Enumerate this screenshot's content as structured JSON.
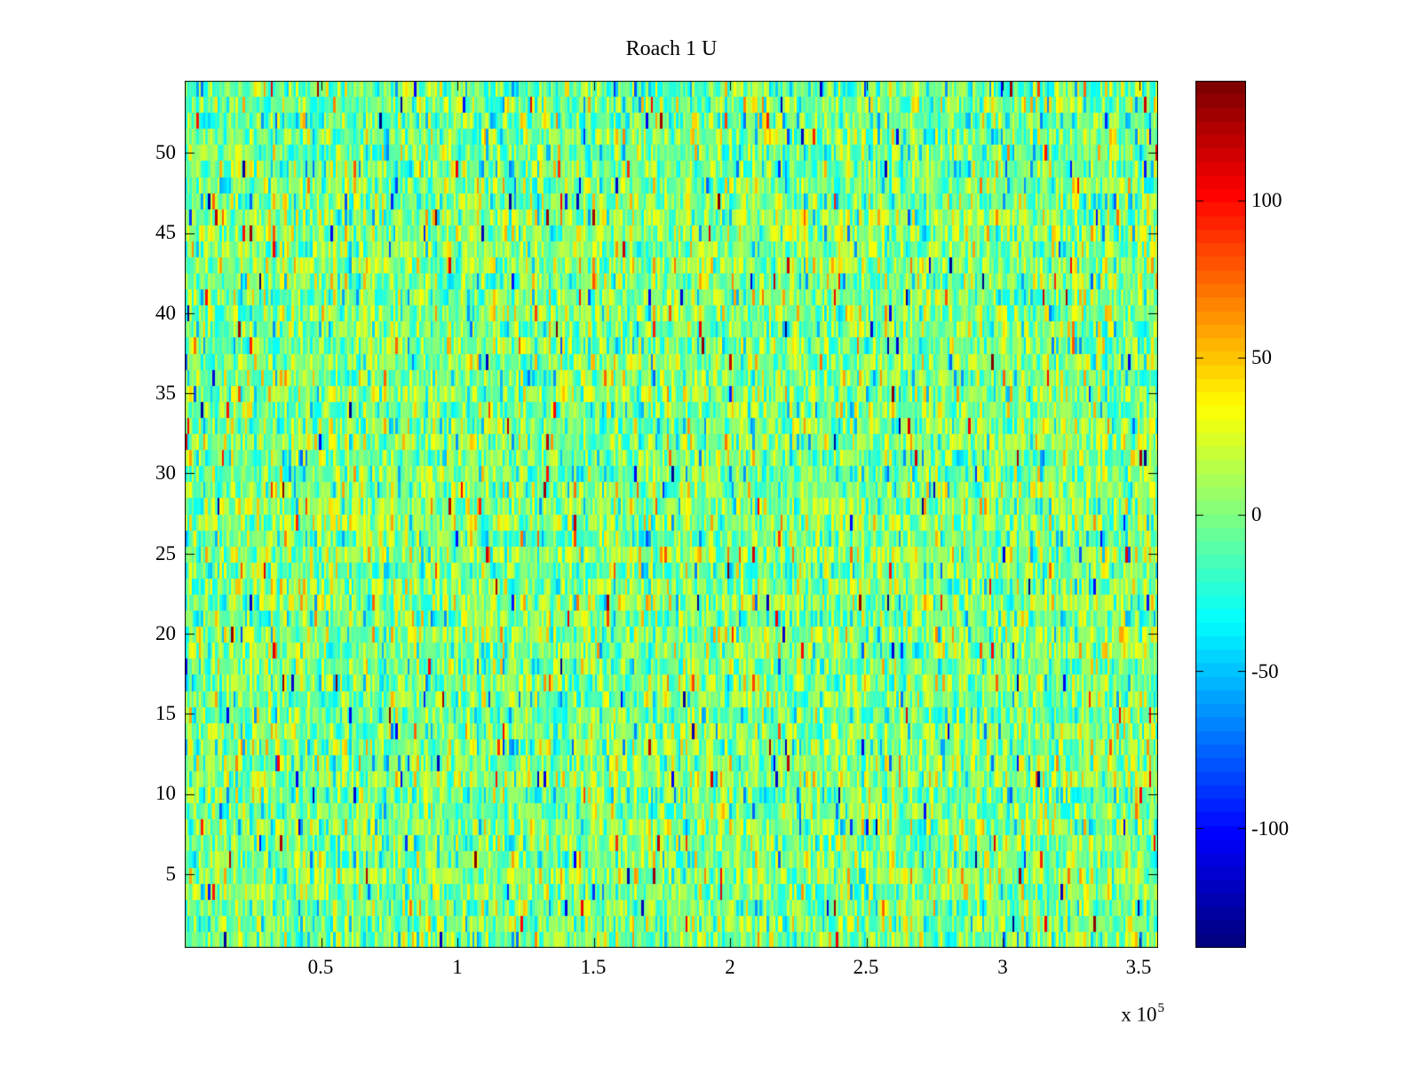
{
  "window": {
    "background": "#ffffff"
  },
  "chart_data": {
    "type": "heatmap",
    "title": "Roach 1 U",
    "colormap": "jet",
    "grid": false,
    "legend_position": "colorbar-right",
    "axis_color": "#000000",
    "text_color": "#000000",
    "x_axis": {
      "range_1e5": [
        0,
        3.57
      ],
      "ticks": [
        0.5,
        1,
        1.5,
        2,
        2.5,
        3,
        3.5
      ],
      "tick_labels": [
        "0.5",
        "1",
        "1.5",
        "2",
        "2.5",
        "3",
        "3.5"
      ],
      "exponent_prefix": "x 10",
      "exponent_power": "5"
    },
    "y_axis": {
      "range": [
        0.4,
        54.5
      ],
      "ticks": [
        5,
        10,
        15,
        20,
        25,
        30,
        35,
        40,
        45,
        50
      ],
      "tick_labels": [
        "5",
        "10",
        "15",
        "20",
        "25",
        "30",
        "35",
        "40",
        "45",
        "50"
      ]
    },
    "colorbar": {
      "clim": [
        -138,
        138
      ],
      "ticks": [
        100,
        50,
        0,
        -50,
        -100
      ],
      "tick_labels": [
        "100",
        "50",
        "0",
        "-50",
        "-100"
      ],
      "levels": 64
    },
    "data_model": {
      "kind": "seeded-random-noise",
      "rows": 54,
      "cols": 420,
      "mean": 0,
      "std": 24,
      "row_bias": 10,
      "outlier_fraction": 0.02,
      "outlier_min": 50,
      "outlier_max": 138,
      "seed": 1337
    }
  }
}
